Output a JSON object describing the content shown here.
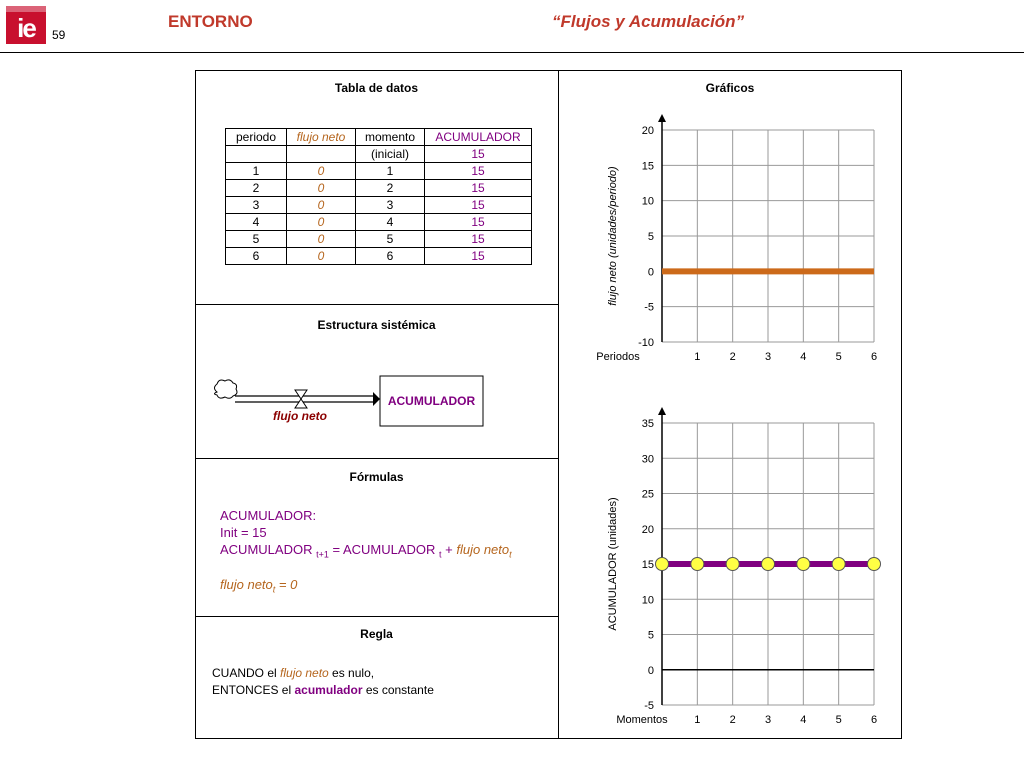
{
  "header": {
    "logo_text": "ie",
    "page_number": "59",
    "section": "ENTORNO",
    "title": "“Flujos y Acumulación”"
  },
  "colors": {
    "header_red": "#c0392b",
    "flujo_orange": "#b5651d",
    "acumulador_purple": "#800080",
    "marker_yellow": "#ffff44"
  },
  "tabla": {
    "title": "Tabla de datos",
    "headers": [
      "periodo",
      "flujo neto",
      "momento",
      "ACUMULADOR"
    ],
    "initial_row": [
      "",
      "",
      "(inicial)",
      "15"
    ],
    "rows": [
      [
        "1",
        "0",
        "1",
        "15"
      ],
      [
        "2",
        "0",
        "2",
        "15"
      ],
      [
        "3",
        "0",
        "3",
        "15"
      ],
      [
        "4",
        "0",
        "4",
        "15"
      ],
      [
        "5",
        "0",
        "5",
        "15"
      ],
      [
        "6",
        "0",
        "6",
        "15"
      ]
    ]
  },
  "estructura": {
    "title": "Estructura sistémica",
    "stock_label": "ACUMULADOR",
    "flow_label": "flujo neto",
    "icons": [
      "cloud-icon",
      "valve-icon"
    ]
  },
  "formulas": {
    "title": "Fórmulas",
    "line1": "ACUMULADOR:",
    "line2": "Init = 15",
    "line3_a": "ACUMULADOR ",
    "line3_sub1": "t+1",
    "line3_b": " = ACUMULADOR ",
    "line3_sub2": "t",
    "line3_c": " + ",
    "line3_d": "flujo neto",
    "line3_sub3": "t",
    "line4_a": "flujo neto",
    "line4_sub": "t",
    "line4_b": " = 0"
  },
  "regla": {
    "title": "Regla",
    "l1_a": "CUANDO el ",
    "l1_b": "flujo neto",
    "l1_c": " es nulo,",
    "l2_a": "ENTONCES el ",
    "l2_b": "acumulador",
    "l2_c": " es constante"
  },
  "graficos_title": "Gráficos",
  "chart_data": [
    {
      "type": "line",
      "ylabel": "flujo neto (unidades/periodo)",
      "xlabel": "Periodos",
      "x": [
        1,
        2,
        3,
        4,
        5,
        6
      ],
      "xlim": [
        0,
        6
      ],
      "ylim": [
        -10,
        20
      ],
      "yticks": [
        20,
        15,
        10,
        5,
        0,
        -5,
        -10
      ],
      "grid": true,
      "series": [
        {
          "values": [
            0,
            0,
            0,
            0,
            0,
            0,
            0
          ],
          "x": [
            0,
            1,
            2,
            3,
            4,
            5,
            6
          ],
          "color": "#cc6a1a",
          "markers": false
        }
      ]
    },
    {
      "type": "line",
      "ylabel": "ACUMULADOR (unidades)",
      "xlabel": "Momentos",
      "x": [
        1,
        2,
        3,
        4,
        5,
        6
      ],
      "xlim": [
        0,
        6
      ],
      "ylim": [
        -5,
        35
      ],
      "yticks": [
        35,
        30,
        25,
        20,
        15,
        10,
        5,
        0,
        -5
      ],
      "grid": true,
      "series": [
        {
          "values": [
            15,
            15,
            15,
            15,
            15,
            15,
            15
          ],
          "x": [
            0,
            1,
            2,
            3,
            4,
            5,
            6
          ],
          "color": "#800080",
          "markers": true,
          "marker_color": "#ffff44"
        }
      ]
    }
  ]
}
